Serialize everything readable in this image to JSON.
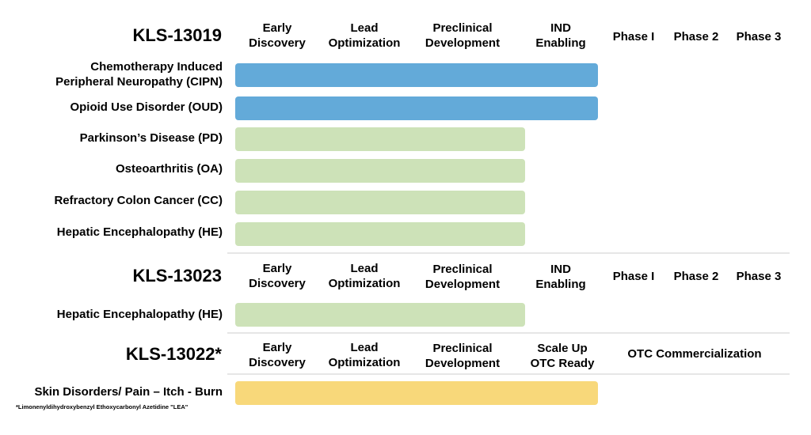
{
  "colors": {
    "blue": "#63aad9",
    "green": "#cde2b8",
    "yellow": "#f8d87a",
    "separator": "#e6e6e6"
  },
  "stages": {
    "early": "Early\nDiscovery",
    "lead": "Lead\nOptimization",
    "preclinical": "Preclinical\nDevelopment",
    "ind": "IND\nEnabling",
    "phase1": "Phase I",
    "phase2": "Phase 2",
    "phase3": "Phase 3",
    "scaleup": "Scale Up\nOTC Ready",
    "otc": "OTC Commercialization"
  },
  "sections": [
    {
      "title": "KLS-13019",
      "rows": [
        {
          "label": "Chemotherapy Induced\nPeripheral Neuropathy (CIPN)",
          "progress_stage": "IND Enabling"
        },
        {
          "label": "Opioid Use Disorder (OUD)",
          "progress_stage": "IND Enabling"
        },
        {
          "label": "Parkinson’s Disease (PD)",
          "progress_stage": "Preclinical Development"
        },
        {
          "label": "Osteoarthritis (OA)",
          "progress_stage": "Preclinical Development"
        },
        {
          "label": "Refractory Colon Cancer (CC)",
          "progress_stage": "Preclinical Development"
        },
        {
          "label": "Hepatic Encephalopathy (HE)",
          "progress_stage": "Preclinical Development"
        }
      ]
    },
    {
      "title": "KLS-13023",
      "rows": [
        {
          "label": "Hepatic Encephalopathy (HE)",
          "progress_stage": "Preclinical Development"
        }
      ]
    },
    {
      "title": "KLS-13022*",
      "rows": [
        {
          "label": "Skin Disorders/ Pain – Itch - Burn",
          "progress_stage": "Scale Up OTC Ready"
        }
      ]
    }
  ],
  "footnote": "*Limonenyldihydroxybenzyl Ethoxycarbonyl Azetidine \"LEA\""
}
